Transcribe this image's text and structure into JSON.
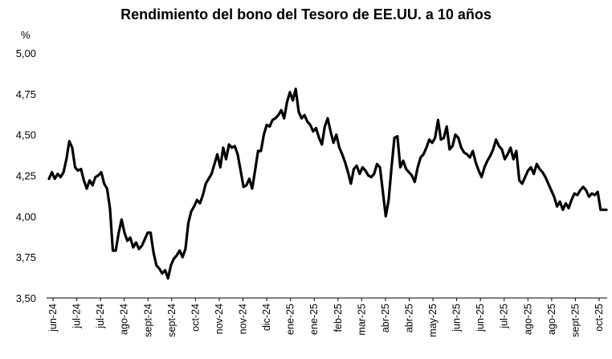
{
  "chart_data": {
    "type": "line",
    "title": "Rendimiento del bono del Tesoro de EE.UU. a 10 años",
    "ylabel": "%",
    "xlabel": "",
    "ylim": [
      3.5,
      5.0
    ],
    "yticks": [
      "5,00",
      "4,75",
      "4,50",
      "4,25",
      "4,00",
      "3,75",
      "3,50"
    ],
    "ytick_values": [
      5.0,
      4.75,
      4.5,
      4.25,
      4.0,
      3.75,
      3.5
    ],
    "xticks": [
      "jun-24",
      "jul-24",
      "jul-24",
      "ago-24",
      "sept-24",
      "sept-24",
      "oct-24",
      "nov-24",
      "nov-24",
      "dic-24",
      "ene-25",
      "ene-25",
      "feb-25",
      "mar-25",
      "abr-25",
      "abr-25",
      "may-25",
      "jun-25",
      "jun-25",
      "jul-25",
      "ago-25",
      "ago-25",
      "sept-25",
      "oct-25"
    ],
    "grid": false,
    "legend": "none",
    "line_color": "#000000",
    "series": [
      {
        "values": [
          4.23,
          4.27,
          4.23,
          4.26,
          4.24,
          4.27,
          4.35,
          4.46,
          4.42,
          4.3,
          4.28,
          4.29,
          4.22,
          4.17,
          4.22,
          4.19,
          4.24,
          4.25,
          4.27,
          4.2,
          4.17,
          4.05,
          3.79,
          3.79,
          3.9,
          3.98,
          3.9,
          3.85,
          3.87,
          3.81,
          3.84,
          3.8,
          3.82,
          3.86,
          3.9,
          3.9,
          3.78,
          3.7,
          3.68,
          3.65,
          3.67,
          3.62,
          3.7,
          3.74,
          3.76,
          3.79,
          3.75,
          3.8,
          3.96,
          4.03,
          4.06,
          4.1,
          4.08,
          4.13,
          4.2,
          4.23,
          4.26,
          4.32,
          4.38,
          4.3,
          4.42,
          4.35,
          4.44,
          4.42,
          4.43,
          4.38,
          4.28,
          4.18,
          4.19,
          4.23,
          4.17,
          4.28,
          4.4,
          4.4,
          4.5,
          4.56,
          4.55,
          4.59,
          4.6,
          4.62,
          4.65,
          4.6,
          4.7,
          4.76,
          4.71,
          4.78,
          4.64,
          4.6,
          4.62,
          4.58,
          4.56,
          4.52,
          4.54,
          4.48,
          4.44,
          4.55,
          4.6,
          4.52,
          4.45,
          4.5,
          4.42,
          4.38,
          4.33,
          4.27,
          4.2,
          4.29,
          4.31,
          4.26,
          4.3,
          4.28,
          4.25,
          4.24,
          4.26,
          4.32,
          4.3,
          4.15,
          4.0,
          4.1,
          4.3,
          4.48,
          4.49,
          4.3,
          4.34,
          4.29,
          4.27,
          4.25,
          4.21,
          4.3,
          4.36,
          4.38,
          4.42,
          4.47,
          4.45,
          4.48,
          4.59,
          4.47,
          4.48,
          4.55,
          4.41,
          4.43,
          4.5,
          4.48,
          4.42,
          4.39,
          4.38,
          4.36,
          4.4,
          4.33,
          4.28,
          4.24,
          4.3,
          4.34,
          4.37,
          4.41,
          4.47,
          4.43,
          4.41,
          4.35,
          4.38,
          4.42,
          4.35,
          4.4,
          4.22,
          4.2,
          4.24,
          4.28,
          4.3,
          4.26,
          4.32,
          4.29,
          4.27,
          4.24,
          4.2,
          4.16,
          4.12,
          4.06,
          4.09,
          4.04,
          4.08,
          4.05,
          4.1,
          4.14,
          4.13,
          4.16,
          4.18,
          4.16,
          4.12,
          4.14,
          4.13,
          4.15,
          4.04,
          4.04,
          4.04
        ]
      }
    ]
  }
}
